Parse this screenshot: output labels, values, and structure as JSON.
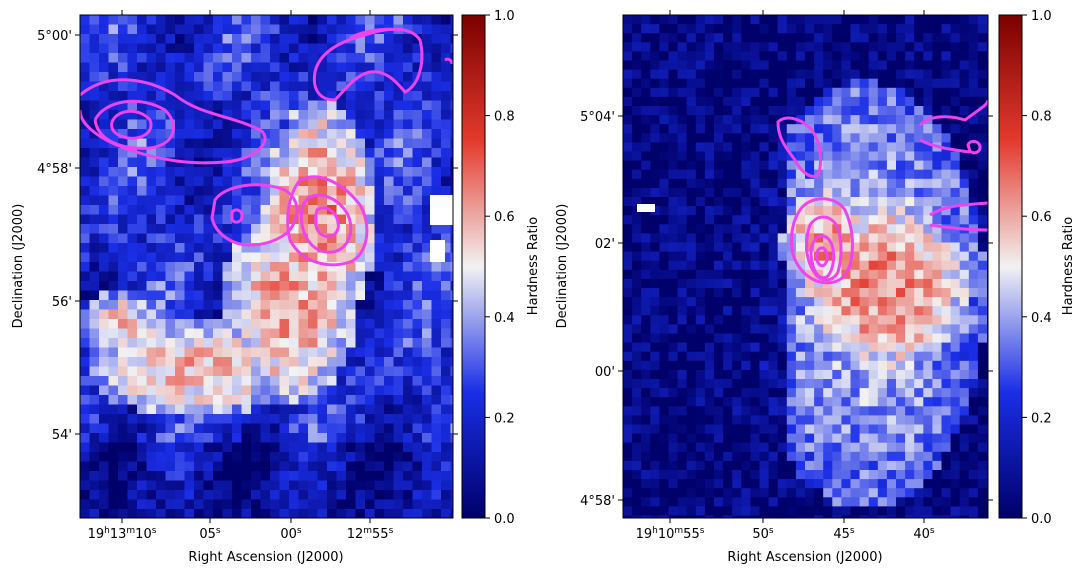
{
  "chart_data": [
    {
      "type": "heatmap",
      "xlabel": "Right Ascension (J2000)",
      "ylabel": "Declination (J2000)",
      "x_ticks": [
        {
          "main": "19",
          "main_sup": "h",
          "main2": "13",
          "main2_sup": "m",
          "main3": "10",
          "main3_sup": "s"
        },
        {
          "main": "05",
          "main_sup": "s"
        },
        {
          "main": "00",
          "main_sup": "s"
        },
        {
          "main": "12",
          "main_sup": "m",
          "main2": "55",
          "main2_sup": "s"
        }
      ],
      "y_ticks": [
        "5°00'",
        "4°58'",
        "56'",
        "54'"
      ],
      "colorbar": {
        "label": "Hardness Ratio",
        "range": [
          0.0,
          1.0
        ],
        "ticks": [
          "0.0",
          "0.2",
          "0.4",
          "0.6",
          "0.8",
          "1.0"
        ]
      },
      "colormap": {
        "low": "#00006a",
        "mid": "#f2f2f2",
        "high": "#7a0000"
      },
      "contour_color": "#ee44ee",
      "hot_regions": [
        {
          "cx": 0.63,
          "cy": 0.4,
          "rx": 0.12,
          "ry": 0.18,
          "value": 0.65
        },
        {
          "cx": 0.55,
          "cy": 0.58,
          "rx": 0.14,
          "ry": 0.16,
          "value": 0.62
        },
        {
          "cx": 0.3,
          "cy": 0.7,
          "rx": 0.22,
          "ry": 0.08,
          "value": 0.58
        },
        {
          "cx": 0.1,
          "cy": 0.62,
          "rx": 0.08,
          "ry": 0.06,
          "value": 0.55
        }
      ]
    },
    {
      "type": "heatmap",
      "xlabel": "Right Ascension (J2000)",
      "ylabel": "Declination (J2000)",
      "x_ticks": [
        {
          "main": "19",
          "main_sup": "h",
          "main2": "10",
          "main2_sup": "m",
          "main3": "55",
          "main3_sup": "s"
        },
        {
          "main": "50",
          "main_sup": "s"
        },
        {
          "main": "45",
          "main_sup": "s"
        },
        {
          "main": "40",
          "main_sup": "s"
        }
      ],
      "y_ticks": [
        "5°04'",
        "02'",
        "00'",
        "4°58'"
      ],
      "colorbar": {
        "label": "Hardness Ratio",
        "range": [
          0.0,
          1.0
        ],
        "ticks": [
          "0.0",
          "0.2",
          "0.4",
          "0.6",
          "0.8",
          "1.0"
        ]
      },
      "colormap": {
        "low": "#00006a",
        "mid": "#f2f2f2",
        "high": "#7a0000"
      },
      "contour_color": "#ee44ee",
      "hot_regions": [
        {
          "cx": 0.7,
          "cy": 0.53,
          "rx": 0.18,
          "ry": 0.14,
          "value": 0.66
        },
        {
          "cx": 0.55,
          "cy": 0.45,
          "rx": 0.1,
          "ry": 0.1,
          "value": 0.62
        }
      ]
    }
  ]
}
